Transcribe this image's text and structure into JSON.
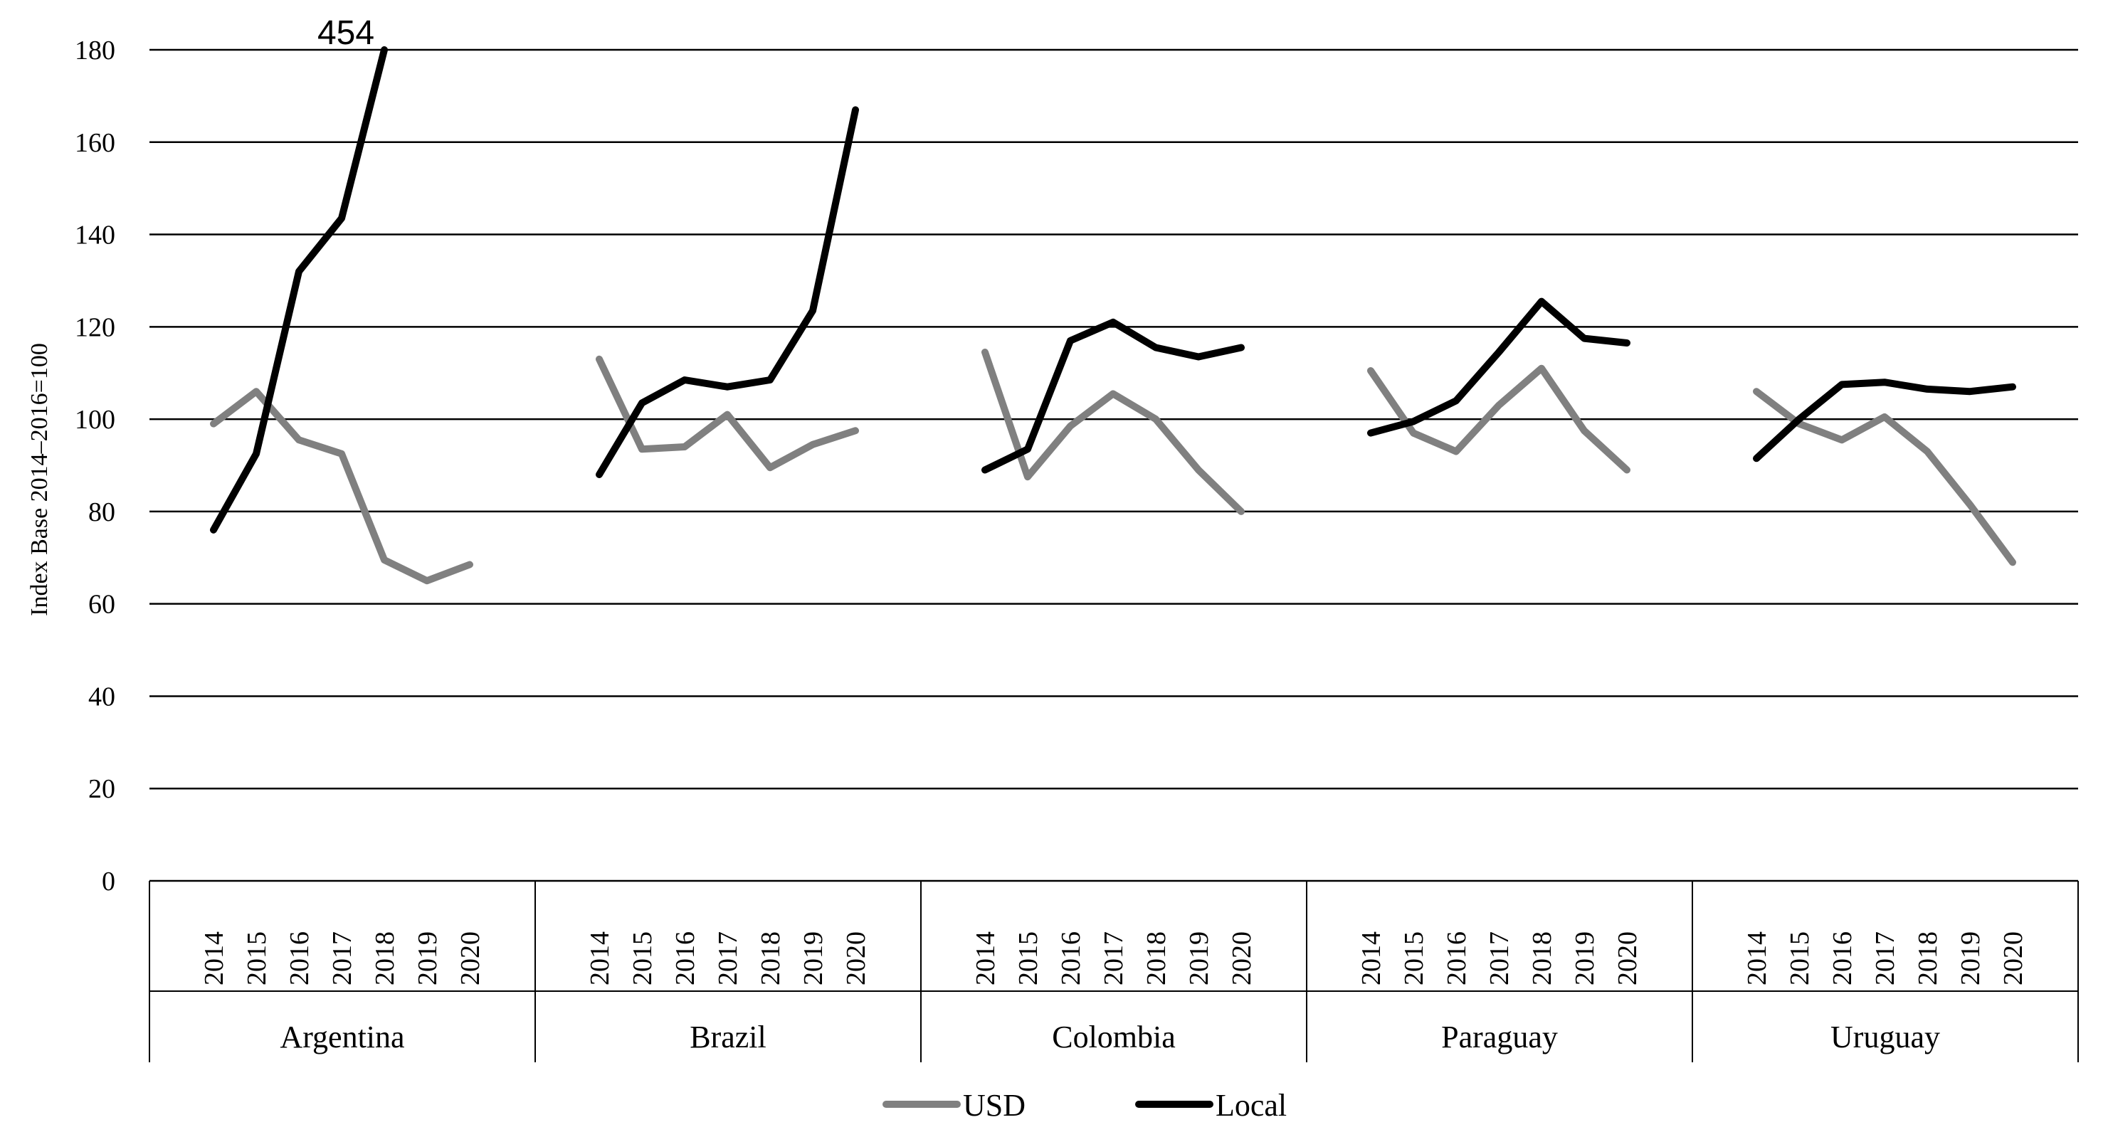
{
  "chart_data": {
    "type": "line",
    "ylabel": "Index Base 2014–2016=100",
    "ylim": [
      0,
      180
    ],
    "yticks": [
      0,
      20,
      40,
      60,
      80,
      100,
      120,
      140,
      160,
      180
    ],
    "grid": true,
    "legend_position": "bottom",
    "years": [
      "2014",
      "2015",
      "2016",
      "2017",
      "2018",
      "2019",
      "2020"
    ],
    "groups": [
      {
        "name": "Argentina",
        "series": [
          {
            "name": "USD",
            "values": [
              99,
              106,
              95.5,
              92.5,
              69.5,
              65,
              68.5
            ]
          },
          {
            "name": "Local",
            "values": [
              76,
              92.5,
              132,
              143.5,
              180,
              null,
              null
            ]
          }
        ]
      },
      {
        "name": "Brazil",
        "series": [
          {
            "name": "USD",
            "values": [
              113,
              93.5,
              94,
              101,
              89.5,
              94.5,
              97.5
            ]
          },
          {
            "name": "Local",
            "values": [
              88,
              103.5,
              108.5,
              107,
              108.5,
              123.5,
              167
            ]
          }
        ]
      },
      {
        "name": "Colombia",
        "series": [
          {
            "name": "USD",
            "values": [
              114.5,
              87.5,
              98.5,
              105.5,
              100,
              89,
              80
            ]
          },
          {
            "name": "Local",
            "values": [
              89,
              93.5,
              117,
              121,
              115.5,
              113.5,
              115.5
            ]
          }
        ]
      },
      {
        "name": "Paraguay",
        "series": [
          {
            "name": "USD",
            "values": [
              110.5,
              97,
              93,
              103,
              111,
              97.5,
              89
            ]
          },
          {
            "name": "Local",
            "values": [
              97,
              99.5,
              104,
              114.5,
              125.5,
              117.5,
              116.5
            ]
          }
        ]
      },
      {
        "name": "Uruguay",
        "series": [
          {
            "name": "USD",
            "values": [
              106,
              99,
              95.5,
              100.5,
              93,
              81.5,
              69
            ]
          },
          {
            "name": "Local",
            "values": [
              91.5,
              100,
              107.5,
              108,
              106.5,
              106,
              107
            ]
          }
        ]
      }
    ],
    "annotations": [
      {
        "text": "454",
        "group": "Argentina",
        "year": "2018",
        "series": "Local"
      }
    ],
    "series_colors": {
      "USD": "#808080",
      "Local": "#000000"
    }
  }
}
